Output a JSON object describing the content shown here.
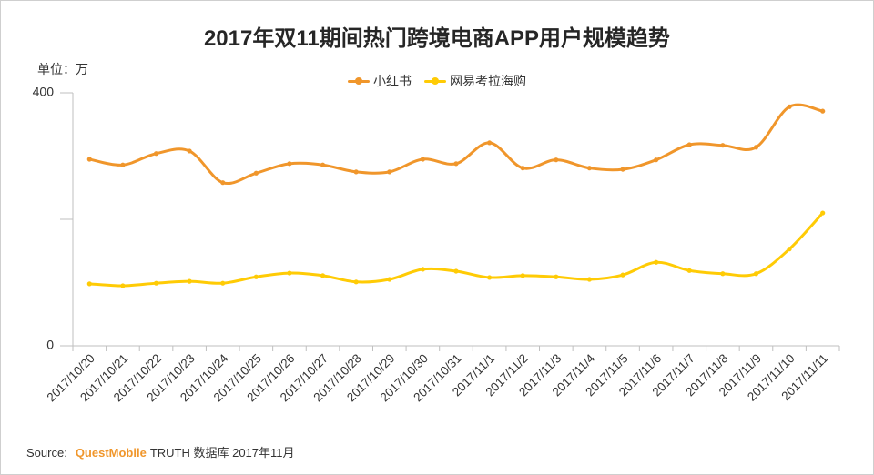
{
  "colors": {
    "axis": "#bfbfbf",
    "text": "#333333",
    "title": "#262626",
    "brand": "#F0962B"
  },
  "source": {
    "prefix": "Source:",
    "brand": "QuestMobile",
    "suffix": "TRUTH 数据库 2017年11月"
  },
  "chart_data": {
    "type": "line",
    "title": "2017年双11期间热门跨境电商APP用户规模趋势",
    "ylabel": "单位：万",
    "xlabel": "",
    "categories": [
      "2017/10/20",
      "2017/10/21",
      "2017/10/22",
      "2017/10/23",
      "2017/10/24",
      "2017/10/25",
      "2017/10/26",
      "2017/10/27",
      "2017/10/28",
      "2017/10/29",
      "2017/10/30",
      "2017/10/31",
      "2017/11/1",
      "2017/11/2",
      "2017/11/3",
      "2017/11/4",
      "2017/11/5",
      "2017/11/6",
      "2017/11/7",
      "2017/11/8",
      "2017/11/9",
      "2017/11/10",
      "2017/11/11"
    ],
    "ylim": [
      0,
      400
    ],
    "yticks": [
      {
        "value": 0,
        "label": "0"
      },
      {
        "value": 200,
        "label": ""
      },
      {
        "value": 400,
        "label": "400"
      }
    ],
    "grid": false,
    "legend": "top-center",
    "smooth": true,
    "markers": true,
    "series": [
      {
        "name": "小红书",
        "color": "#F0962B",
        "values": [
          295,
          286,
          304,
          308,
          258,
          273,
          288,
          286,
          275,
          275,
          295,
          288,
          321,
          281,
          294,
          281,
          279,
          294,
          318,
          317,
          314,
          378,
          371
        ]
      },
      {
        "name": "网易考拉海购",
        "color": "#FFCB05",
        "values": [
          98,
          95,
          99,
          102,
          99,
          109,
          115,
          111,
          101,
          105,
          121,
          118,
          108,
          111,
          109,
          105,
          112,
          132,
          119,
          114,
          114,
          153,
          210
        ]
      }
    ]
  }
}
